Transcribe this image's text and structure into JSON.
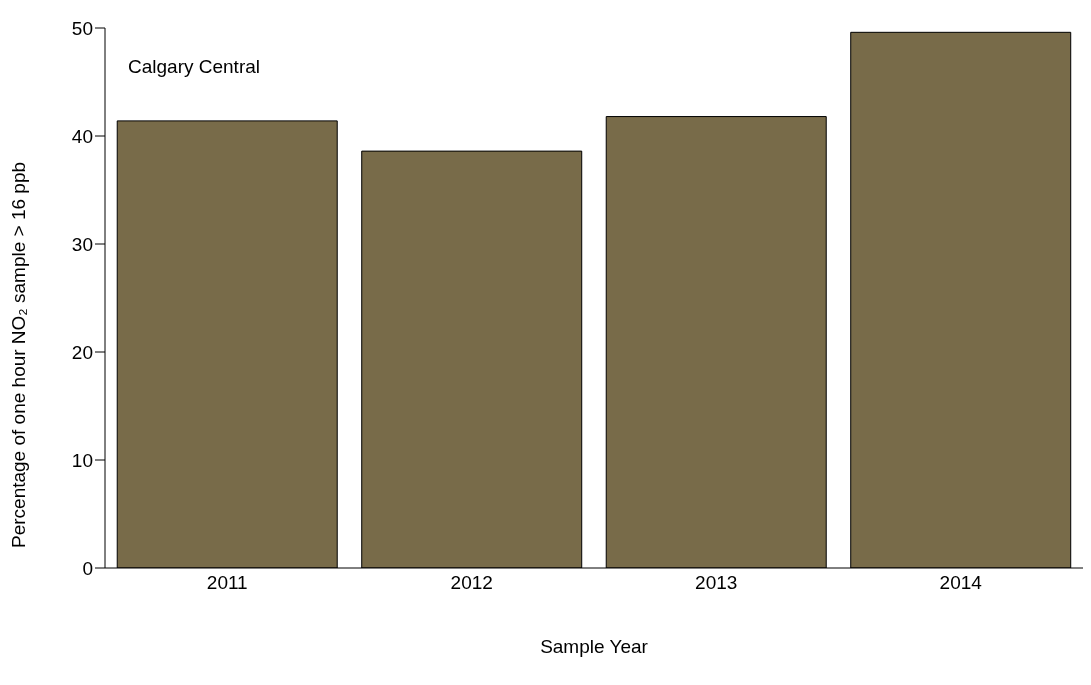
{
  "chart_data": {
    "type": "bar",
    "xlabel": "Sample Year",
    "ylabel": "Percentage of one hour NO₂ sample > 16 ppb",
    "annotations": [
      "Calgary Central"
    ],
    "categories": [
      "2011",
      "2012",
      "2013",
      "2014"
    ],
    "values": [
      41.4,
      38.6,
      41.8,
      49.6
    ],
    "color": "#786b49",
    "ylim": [
      0,
      50
    ],
    "yticks": [
      0,
      10,
      20,
      30,
      40,
      50
    ],
    "grid": false,
    "legend": false
  }
}
